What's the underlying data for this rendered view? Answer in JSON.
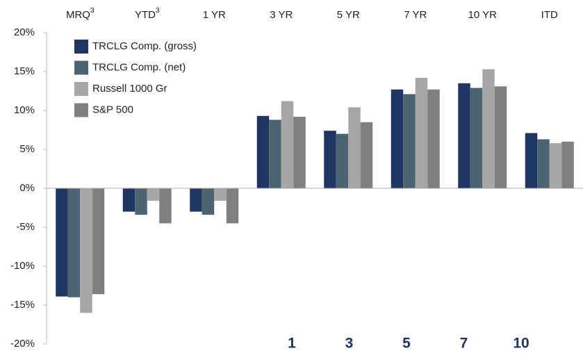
{
  "chart_data": {
    "type": "bar",
    "categories": [
      "MRQ",
      "YTD",
      "1 YR",
      "3 YR",
      "5 YR",
      "7 YR",
      "10 YR",
      "ITD"
    ],
    "category_superscripts": [
      "3",
      "3",
      null,
      null,
      null,
      null,
      null,
      null
    ],
    "series": [
      {
        "name": "TRCLG Comp. (gross)",
        "color": "#1f3564",
        "values": [
          -13.9,
          -3.0,
          -3.0,
          9.3,
          7.4,
          12.7,
          13.5,
          7.1
        ]
      },
      {
        "name": "TRCLG Comp. (net)",
        "color": "#4a6571",
        "values": [
          -14.0,
          -3.4,
          -3.4,
          8.8,
          7.0,
          12.1,
          12.9,
          6.3
        ]
      },
      {
        "name": "Russell 1000 Gr",
        "color": "#a6a6a6",
        "values": [
          -16.0,
          -1.6,
          -1.6,
          11.2,
          10.4,
          14.2,
          15.3,
          5.8
        ]
      },
      {
        "name": "S&P 500",
        "color": "#808080",
        "values": [
          -13.6,
          -4.5,
          -4.5,
          9.2,
          8.5,
          12.7,
          13.1,
          6.0
        ]
      }
    ],
    "ylim": [
      -20,
      20
    ],
    "yticks": [
      {
        "value": -20,
        "label": "-20%"
      },
      {
        "value": -15,
        "label": "-15%"
      },
      {
        "value": -10,
        "label": "-10%"
      },
      {
        "value": -5,
        "label": "-5%"
      },
      {
        "value": 0,
        "label": "0%"
      },
      {
        "value": 5,
        "label": "5%"
      },
      {
        "value": 10,
        "label": "10%"
      },
      {
        "value": 15,
        "label": "15%"
      },
      {
        "value": 20,
        "label": "20%"
      }
    ],
    "legend_position": "upper left",
    "annotations": [
      "1",
      "3",
      "5",
      "7",
      "10"
    ]
  }
}
